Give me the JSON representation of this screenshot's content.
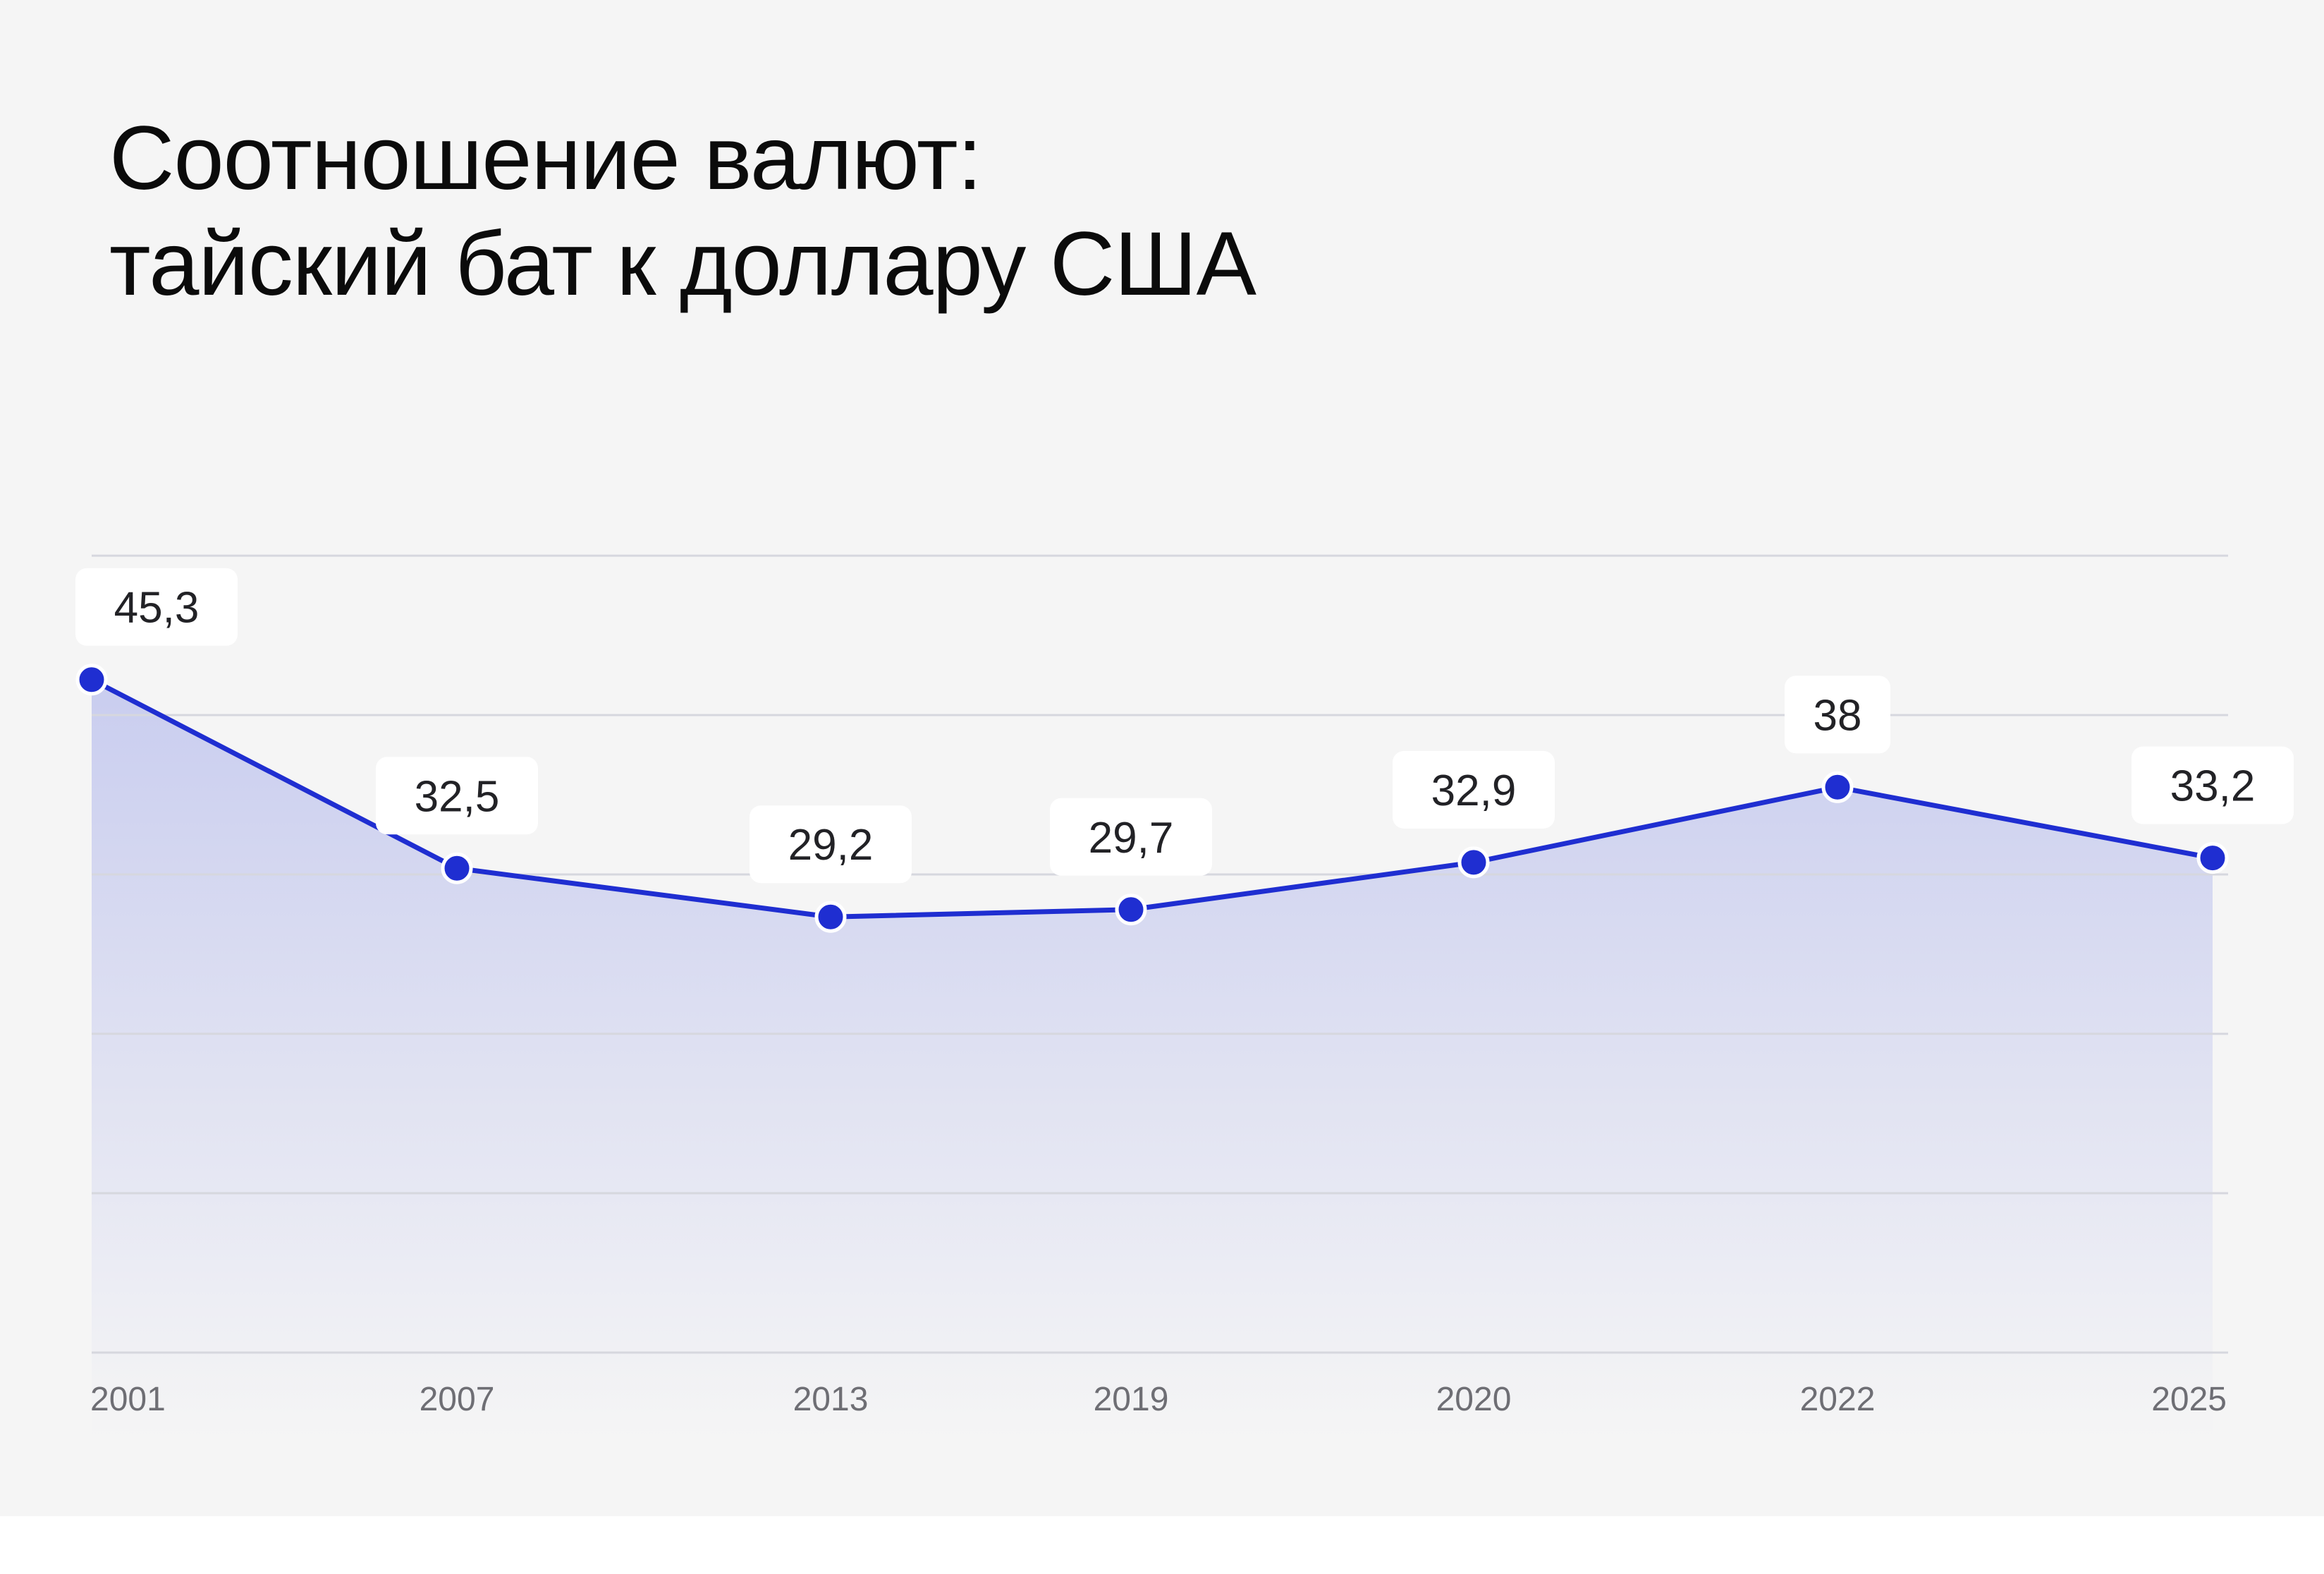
{
  "title": {
    "line1": "Соотношение валют:",
    "line2": "тайский бат к доллару США"
  },
  "colors": {
    "background": "#f5f5f5",
    "line": "#1f2ed1",
    "area_top": "#c9cdef",
    "area_bottom": "#f5f5f5",
    "grid": "#d6d7de",
    "label_box": "#ffffff"
  },
  "chart_data": {
    "type": "area",
    "categories": [
      "2001",
      "2007",
      "2013",
      "2019",
      "2020",
      "2022",
      "2025"
    ],
    "values": [
      45.3,
      32.5,
      29.2,
      29.7,
      32.9,
      38,
      33.2
    ],
    "value_labels": [
      "45,3",
      "32,5",
      "29,2",
      "29,7",
      "32,9",
      "38",
      "33,2"
    ],
    "title": "Соотношение валют: тайский бат к доллару США",
    "xlabel": "",
    "ylabel": "",
    "grid": true,
    "legend": "none"
  }
}
